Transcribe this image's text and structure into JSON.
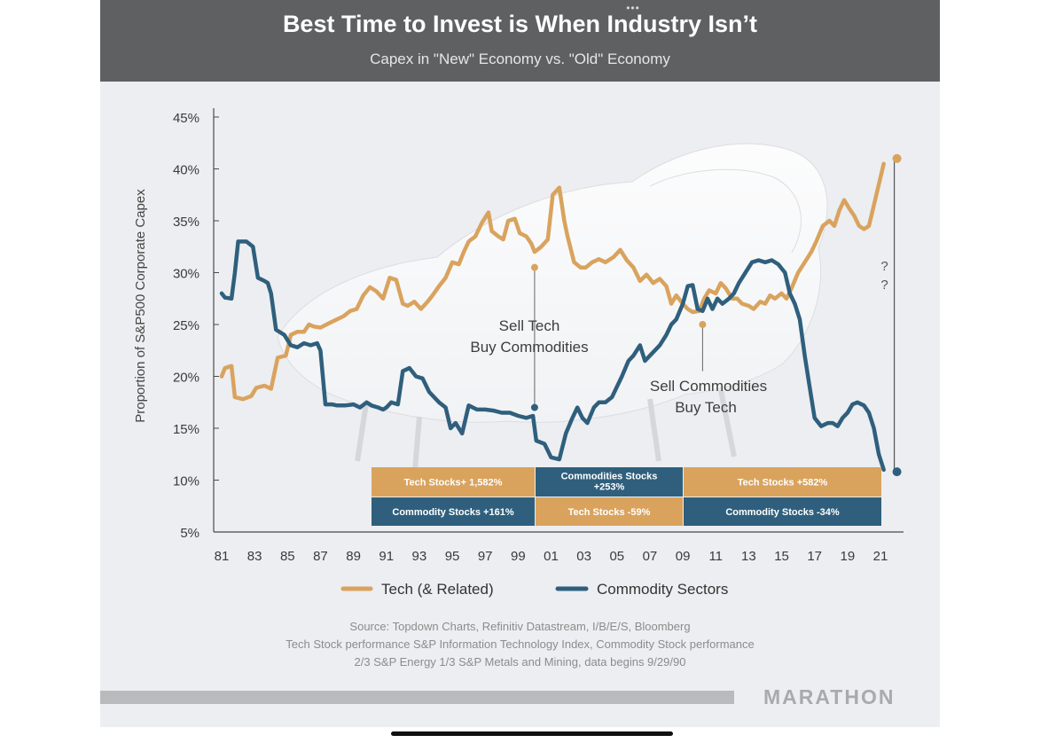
{
  "header": {
    "dots": "•••"
  },
  "chart_data": {
    "type": "line",
    "title": "Best Time to Invest is When Industry Isn’t",
    "subtitle": "Capex in \"New\" Economy vs. \"Old\" Economy",
    "ylabel": "Proportion of S&P500 Corporate Capex",
    "xlabel": "",
    "ylim": [
      5,
      45
    ],
    "yticks": [
      5,
      10,
      15,
      20,
      25,
      30,
      35,
      40,
      45
    ],
    "ytick_labels": [
      "5%",
      "10%",
      "15%",
      "20%",
      "25%",
      "30%",
      "35%",
      "40%",
      "45%"
    ],
    "xlim": [
      1981,
      2022.5
    ],
    "xticks": [
      1981,
      1983,
      1985,
      1987,
      1989,
      1991,
      1993,
      1995,
      1997,
      1999,
      2001,
      2003,
      2005,
      2007,
      2009,
      2011,
      2013,
      2015,
      2017,
      2019,
      2021
    ],
    "xtick_labels": [
      "81",
      "83",
      "85",
      "87",
      "89",
      "91",
      "93",
      "95",
      "97",
      "99",
      "01",
      "03",
      "05",
      "07",
      "09",
      "11",
      "13",
      "15",
      "17",
      "19",
      "21"
    ],
    "series": [
      {
        "name": "Tech (& Related)",
        "color": "#d9a35e",
        "points": [
          [
            1981.0,
            20.0
          ],
          [
            1981.2,
            20.8
          ],
          [
            1981.6,
            21.0
          ],
          [
            1981.8,
            18.0
          ],
          [
            1982.3,
            17.8
          ],
          [
            1982.8,
            18.1
          ],
          [
            1983.1,
            18.9
          ],
          [
            1983.6,
            19.1
          ],
          [
            1984.0,
            18.8
          ],
          [
            1984.4,
            21.8
          ],
          [
            1984.9,
            22.0
          ],
          [
            1985.2,
            24.0
          ],
          [
            1985.6,
            24.3
          ],
          [
            1986.0,
            24.3
          ],
          [
            1986.3,
            25.0
          ],
          [
            1986.6,
            24.8
          ],
          [
            1987.0,
            24.7
          ],
          [
            1987.5,
            25.1
          ],
          [
            1988.0,
            25.5
          ],
          [
            1988.4,
            25.8
          ],
          [
            1988.8,
            26.3
          ],
          [
            1989.2,
            26.5
          ],
          [
            1989.6,
            27.8
          ],
          [
            1990.0,
            28.6
          ],
          [
            1990.4,
            28.2
          ],
          [
            1990.8,
            27.5
          ],
          [
            1991.2,
            29.5
          ],
          [
            1991.6,
            29.3
          ],
          [
            1992.0,
            27.0
          ],
          [
            1992.3,
            26.8
          ],
          [
            1992.7,
            27.2
          ],
          [
            1993.1,
            26.5
          ],
          [
            1993.5,
            27.2
          ],
          [
            1993.8,
            27.8
          ],
          [
            1994.2,
            28.7
          ],
          [
            1994.6,
            29.5
          ],
          [
            1995.0,
            31.0
          ],
          [
            1995.4,
            30.8
          ],
          [
            1995.7,
            32.0
          ],
          [
            1996.0,
            33.0
          ],
          [
            1996.4,
            33.5
          ],
          [
            1996.8,
            34.8
          ],
          [
            1997.2,
            35.8
          ],
          [
            1997.4,
            34.0
          ],
          [
            1997.8,
            33.5
          ],
          [
            1998.1,
            33.2
          ],
          [
            1998.4,
            35.0
          ],
          [
            1998.8,
            35.2
          ],
          [
            1999.1,
            33.8
          ],
          [
            1999.5,
            33.5
          ],
          [
            1999.8,
            32.8
          ],
          [
            2000.0,
            32.0
          ],
          [
            2000.4,
            32.5
          ],
          [
            2000.8,
            33.2
          ],
          [
            2001.1,
            37.5
          ],
          [
            2001.5,
            38.2
          ],
          [
            2001.8,
            35.0
          ],
          [
            2002.0,
            33.5
          ],
          [
            2002.4,
            31.0
          ],
          [
            2002.8,
            30.5
          ],
          [
            2003.1,
            30.5
          ],
          [
            2003.5,
            31.0
          ],
          [
            2003.9,
            31.3
          ],
          [
            2004.3,
            31.0
          ],
          [
            2004.8,
            31.5
          ],
          [
            2005.2,
            32.2
          ],
          [
            2005.6,
            31.2
          ],
          [
            2006.0,
            30.5
          ],
          [
            2006.4,
            29.2
          ],
          [
            2006.8,
            29.8
          ],
          [
            2007.2,
            29.0
          ],
          [
            2007.6,
            29.4
          ],
          [
            2008.0,
            28.7
          ],
          [
            2008.3,
            27.0
          ],
          [
            2008.6,
            27.8
          ],
          [
            2009.0,
            27.0
          ],
          [
            2009.3,
            26.5
          ],
          [
            2009.6,
            26.2
          ],
          [
            2010.0,
            26.3
          ],
          [
            2010.3,
            27.5
          ],
          [
            2010.6,
            28.3
          ],
          [
            2011.0,
            28.0
          ],
          [
            2011.3,
            29.0
          ],
          [
            2011.6,
            28.5
          ],
          [
            2012.0,
            27.5
          ],
          [
            2012.3,
            27.5
          ],
          [
            2012.6,
            27.0
          ],
          [
            2013.0,
            26.8
          ],
          [
            2013.3,
            26.5
          ],
          [
            2013.7,
            27.2
          ],
          [
            2014.0,
            27.0
          ],
          [
            2014.3,
            27.8
          ],
          [
            2014.6,
            27.5
          ],
          [
            2015.0,
            28.0
          ],
          [
            2015.3,
            27.5
          ],
          [
            2015.6,
            28.5
          ],
          [
            2016.0,
            30.0
          ],
          [
            2016.4,
            31.0
          ],
          [
            2016.8,
            32.0
          ],
          [
            2017.1,
            33.0
          ],
          [
            2017.5,
            34.5
          ],
          [
            2017.9,
            35.0
          ],
          [
            2018.2,
            34.5
          ],
          [
            2018.5,
            36.0
          ],
          [
            2018.8,
            37.0
          ],
          [
            2019.1,
            36.2
          ],
          [
            2019.4,
            35.5
          ],
          [
            2019.7,
            34.5
          ],
          [
            2020.0,
            34.2
          ],
          [
            2020.3,
            34.5
          ],
          [
            2020.6,
            36.5
          ],
          [
            2020.9,
            38.5
          ],
          [
            2021.2,
            40.5
          ]
        ]
      },
      {
        "name": "Commodity Sectors",
        "color": "#2f5f7d",
        "points": [
          [
            1981.0,
            28.0
          ],
          [
            1981.2,
            27.6
          ],
          [
            1981.6,
            27.5
          ],
          [
            1981.8,
            30.0
          ],
          [
            1982.0,
            33.0
          ],
          [
            1982.5,
            33.0
          ],
          [
            1982.9,
            32.5
          ],
          [
            1983.2,
            29.5
          ],
          [
            1983.6,
            29.2
          ],
          [
            1983.8,
            29.0
          ],
          [
            1984.0,
            28.0
          ],
          [
            1984.3,
            24.5
          ],
          [
            1984.8,
            24.0
          ],
          [
            1985.2,
            23.0
          ],
          [
            1985.6,
            22.8
          ],
          [
            1986.0,
            23.2
          ],
          [
            1986.4,
            23.0
          ],
          [
            1986.8,
            23.2
          ],
          [
            1987.0,
            22.5
          ],
          [
            1987.3,
            17.3
          ],
          [
            1987.7,
            17.3
          ],
          [
            1988.0,
            17.2
          ],
          [
            1988.5,
            17.2
          ],
          [
            1989.0,
            17.3
          ],
          [
            1989.4,
            17.0
          ],
          [
            1989.8,
            17.5
          ],
          [
            1990.1,
            17.2
          ],
          [
            1990.5,
            17.0
          ],
          [
            1990.8,
            16.8
          ],
          [
            1991.0,
            17.0
          ],
          [
            1991.3,
            17.5
          ],
          [
            1991.7,
            17.3
          ],
          [
            1992.0,
            20.5
          ],
          [
            1992.4,
            20.8
          ],
          [
            1992.8,
            20.0
          ],
          [
            1993.2,
            19.8
          ],
          [
            1993.6,
            18.5
          ],
          [
            1993.9,
            18.0
          ],
          [
            1994.2,
            17.5
          ],
          [
            1994.6,
            17.0
          ],
          [
            1994.9,
            15.0
          ],
          [
            1995.2,
            15.5
          ],
          [
            1995.6,
            14.5
          ],
          [
            1996.0,
            17.2
          ],
          [
            1996.5,
            16.8
          ],
          [
            1997.0,
            16.8
          ],
          [
            1997.5,
            16.7
          ],
          [
            1998.0,
            16.5
          ],
          [
            1998.5,
            16.5
          ],
          [
            1999.0,
            16.2
          ],
          [
            1999.5,
            16.0
          ],
          [
            1999.9,
            16.2
          ],
          [
            2000.1,
            13.8
          ],
          [
            2000.6,
            13.5
          ],
          [
            2001.0,
            12.2
          ],
          [
            2001.5,
            12.0
          ],
          [
            2001.9,
            14.5
          ],
          [
            2002.3,
            16.0
          ],
          [
            2002.6,
            17.0
          ],
          [
            2002.9,
            16.0
          ],
          [
            2003.2,
            15.5
          ],
          [
            2003.6,
            17.0
          ],
          [
            2003.9,
            17.5
          ],
          [
            2004.3,
            17.5
          ],
          [
            2004.7,
            18.0
          ],
          [
            2005.0,
            19.0
          ],
          [
            2005.3,
            20.0
          ],
          [
            2005.7,
            21.5
          ],
          [
            2006.0,
            22.0
          ],
          [
            2006.4,
            23.0
          ],
          [
            2006.7,
            21.5
          ],
          [
            2007.0,
            22.0
          ],
          [
            2007.3,
            22.5
          ],
          [
            2007.6,
            23.0
          ],
          [
            2008.0,
            24.0
          ],
          [
            2008.3,
            25.0
          ],
          [
            2008.6,
            25.5
          ],
          [
            2009.0,
            27.0
          ],
          [
            2009.3,
            28.7
          ],
          [
            2009.6,
            28.8
          ],
          [
            2009.9,
            26.5
          ],
          [
            2010.2,
            26.3
          ],
          [
            2010.5,
            27.5
          ],
          [
            2010.8,
            26.5
          ],
          [
            2011.1,
            27.5
          ],
          [
            2011.4,
            27.0
          ],
          [
            2011.8,
            27.5
          ],
          [
            2012.1,
            28.0
          ],
          [
            2012.4,
            29.0
          ],
          [
            2012.8,
            30.0
          ],
          [
            2013.2,
            31.0
          ],
          [
            2013.6,
            31.2
          ],
          [
            2014.0,
            31.0
          ],
          [
            2014.4,
            31.2
          ],
          [
            2014.8,
            30.8
          ],
          [
            2015.2,
            30.0
          ],
          [
            2015.5,
            28.0
          ],
          [
            2015.8,
            27.0
          ],
          [
            2016.1,
            25.5
          ],
          [
            2016.4,
            22.0
          ],
          [
            2016.7,
            19.0
          ],
          [
            2017.0,
            16.0
          ],
          [
            2017.4,
            15.2
          ],
          [
            2017.8,
            15.5
          ],
          [
            2018.1,
            15.5
          ],
          [
            2018.4,
            15.2
          ],
          [
            2018.7,
            16.0
          ],
          [
            2019.0,
            16.5
          ],
          [
            2019.3,
            17.3
          ],
          [
            2019.6,
            17.5
          ],
          [
            2020.0,
            17.2
          ],
          [
            2020.3,
            16.5
          ],
          [
            2020.6,
            15.0
          ],
          [
            2020.9,
            12.5
          ],
          [
            2021.2,
            11.0
          ]
        ]
      }
    ],
    "end_points": [
      {
        "series": "Tech (& Related)",
        "x": 2022.0,
        "y": 41.0
      },
      {
        "series": "Commodity Sectors",
        "x": 2022.0,
        "y": 10.8
      }
    ],
    "bracket_label": [
      "?",
      "?"
    ],
    "annotations": [
      {
        "lines": [
          "Sell Tech",
          "Buy Commodities"
        ],
        "x_from": 2000.0,
        "y_from": 30.5,
        "x_to": 2000.0,
        "y_to": 17.0
      },
      {
        "lines": [
          "Sell Commodities",
          "Buy Tech"
        ],
        "x_from": 2010.2,
        "y_from": 25.0,
        "x_to": 2010.2,
        "y_to": 20.5
      }
    ],
    "performance_table": [
      [
        {
          "text": [
            "Tech Stocks+ 1,582%"
          ],
          "bg": "#d9a35e"
        },
        {
          "text": [
            "Commodities Stocks",
            "+253%"
          ],
          "bg": "#2f5f7d"
        },
        {
          "text": [
            "Tech Stocks +582%"
          ],
          "bg": "#d9a35e"
        }
      ],
      [
        {
          "text": [
            "Commodity Stocks +161%"
          ],
          "bg": "#2f5f7d"
        },
        {
          "text": [
            "Tech Stocks -59%"
          ],
          "bg": "#d9a35e"
        },
        {
          "text": [
            "Commodity Stocks -34%"
          ],
          "bg": "#2f5f7d"
        }
      ]
    ],
    "legend": [
      {
        "label": "Tech (& Related)",
        "color": "#d9a35e"
      },
      {
        "label": "Commodity Sectors",
        "color": "#2f5f7d"
      }
    ],
    "legend_position": "bottom"
  },
  "sources": [
    "Source: Topdown Charts, Refinitiv Datastream, I/B/E/S, Bloomberg",
    "Tech Stock performance S&P Information Technology Index, Commodity Stock performance",
    "2/3 S&P Energy 1/3 S&P Metals and Mining, data begins 9/29/90"
  ],
  "brand": "MARATHON"
}
